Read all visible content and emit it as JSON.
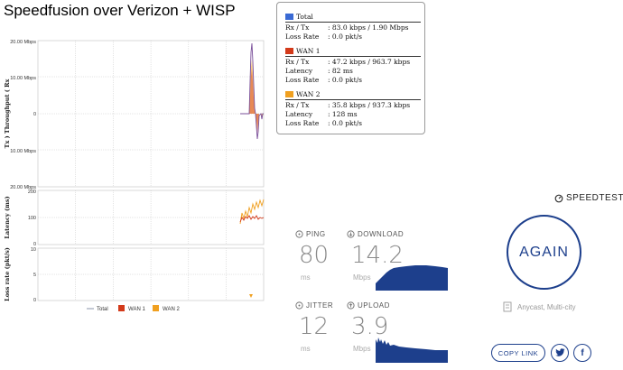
{
  "title": "Speedfusion over Verizon + WISP",
  "stats": {
    "groups": [
      {
        "name": "Total",
        "color": "#3a6ad4",
        "rows": [
          {
            "k": "Rx / Tx",
            "v": ": 83.0 kbps / 1.90 Mbps"
          },
          {
            "k": "Loss Rate",
            "v": ": 0.0 pkt/s"
          }
        ]
      },
      {
        "name": "WAN 1",
        "color": "#d33a1a",
        "rows": [
          {
            "k": "Rx / Tx",
            "v": ": 47.2 kbps / 963.7 kbps"
          },
          {
            "k": "Latency",
            "v": ": 82 ms"
          },
          {
            "k": "Loss Rate",
            "v": ": 0.0 pkt/s"
          }
        ]
      },
      {
        "name": "WAN 2",
        "color": "#f0a020",
        "rows": [
          {
            "k": "Rx / Tx",
            "v": ": 35.8 kbps / 937.3 kbps"
          },
          {
            "k": "Latency",
            "v": ": 128 ms"
          },
          {
            "k": "Loss Rate",
            "v": ": 0.0 pkt/s"
          }
        ]
      }
    ]
  },
  "charts": {
    "throughput": {
      "ylabel": "Tx ) Throughput ( Rx",
      "ticks": [
        "20.00 Mbps",
        "10.00 Mbps",
        "0",
        "10.00 Mbps",
        "20.00 Mbps"
      ]
    },
    "latency": {
      "ylabel": "Latency (ms)",
      "ticks": [
        "200",
        "100",
        "0"
      ]
    },
    "loss": {
      "ylabel": "Loss rate (pkt/s)",
      "ticks": [
        "10",
        "5",
        "0"
      ]
    },
    "legend": [
      {
        "name": "Total",
        "color": "#8a93a8"
      },
      {
        "name": "WAN 1",
        "color": "#d33a1a"
      },
      {
        "name": "WAN 2",
        "color": "#f0a020"
      }
    ]
  },
  "speedtest": {
    "brand": "SPEEDTEST",
    "ping_label": "PING",
    "ping_value": "80",
    "ping_unit": "ms",
    "download_label": "DOWNLOAD",
    "download_value": "14.2",
    "download_unit": "Mbps",
    "jitter_label": "JITTER",
    "jitter_value": "12",
    "jitter_unit": "ms",
    "upload_label": "UPLOAD",
    "upload_value": "3.9",
    "upload_unit": "Mbps",
    "again_label": "AGAIN",
    "server": "Anycast, Multi-city",
    "copy_link": "COPY LINK",
    "accent": "#1d3f8c"
  }
}
